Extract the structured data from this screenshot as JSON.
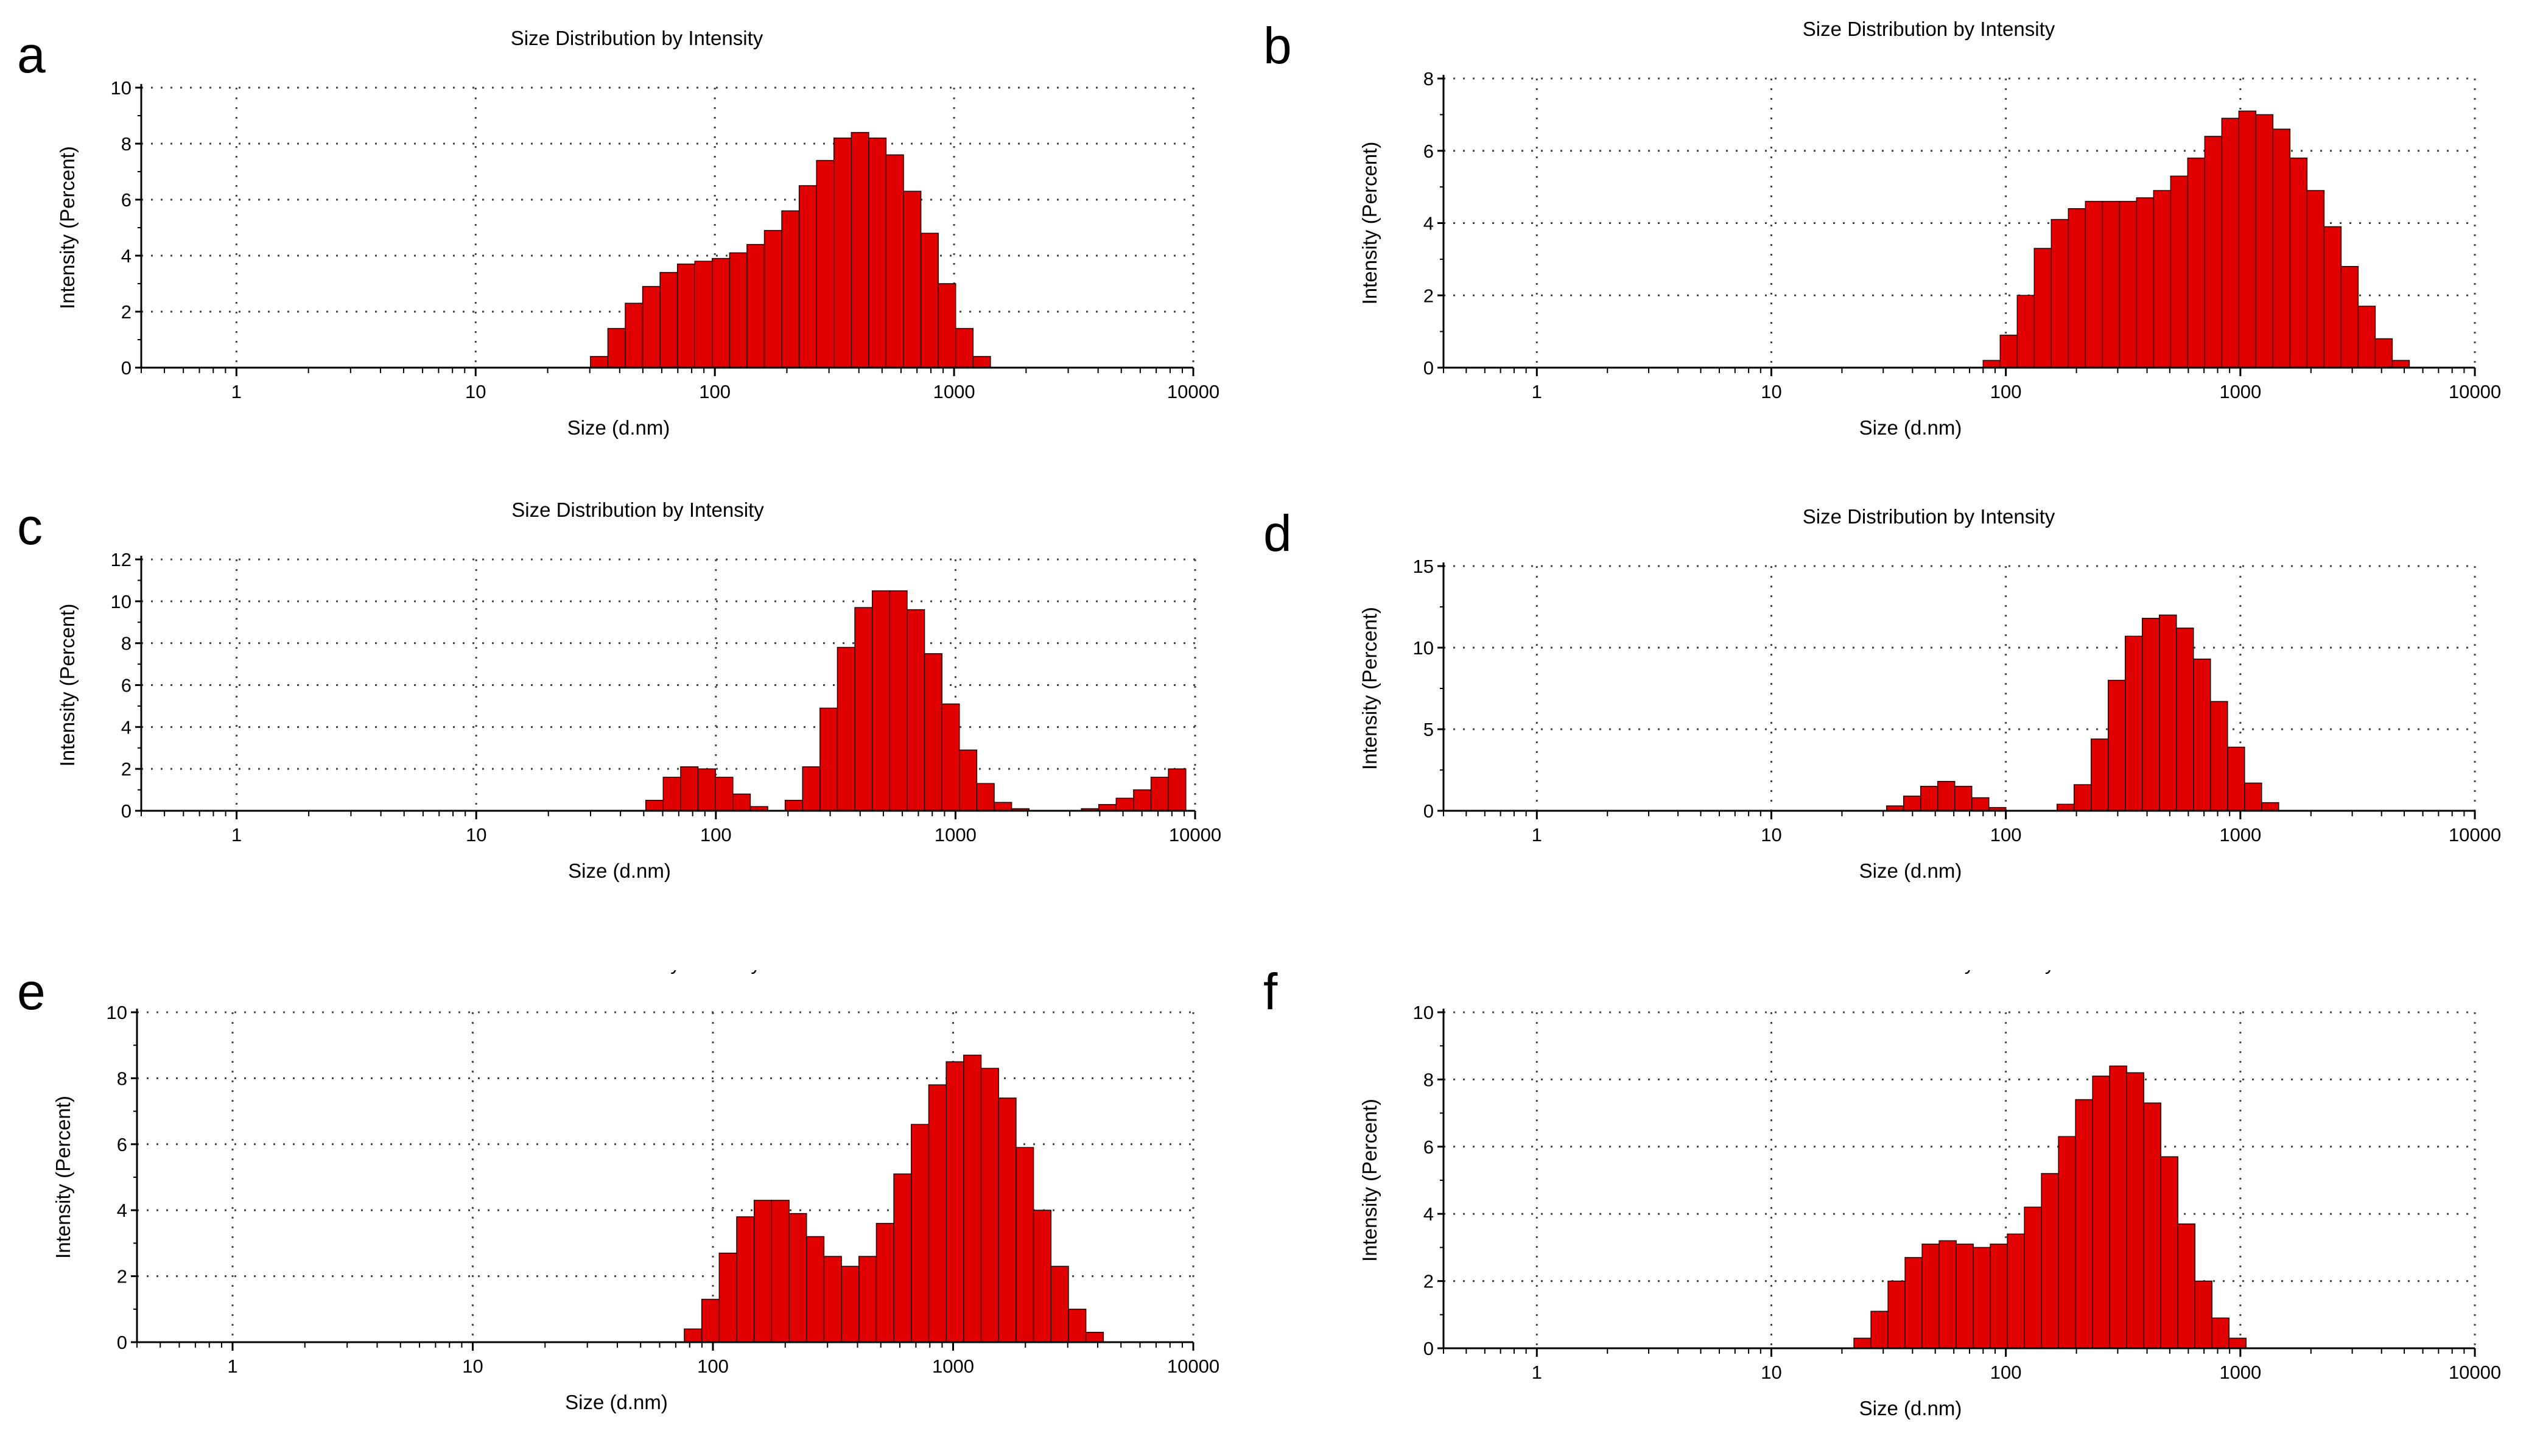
{
  "chart_data": [
    {
      "panel": "a",
      "type": "bar",
      "title": "Size Distribution by Intensity",
      "xlabel": "Size (d.nm)",
      "ylabel": "Intensity (Percent)",
      "xscale": "log",
      "xlim": [
        0.4,
        10000
      ],
      "ylim": [
        0,
        10
      ],
      "yticks": [
        0,
        2,
        4,
        6,
        8,
        10
      ],
      "xtick_labels": [
        "1",
        "10",
        "100",
        "1000",
        "10000"
      ],
      "bin_start": 30.2,
      "values": [
        0.4,
        1.4,
        2.3,
        2.9,
        3.4,
        3.7,
        3.8,
        3.9,
        4.1,
        4.4,
        4.9,
        5.6,
        6.5,
        7.4,
        8.2,
        8.4,
        8.2,
        7.6,
        6.3,
        4.8,
        3.0,
        1.4,
        0.4
      ]
    },
    {
      "panel": "b",
      "type": "bar",
      "title": "Size Distribution by Intensity",
      "xlabel": "Size (d.nm)",
      "ylabel": "Intensity (Percent)",
      "xscale": "log",
      "xlim": [
        0.4,
        10000
      ],
      "ylim": [
        0,
        8
      ],
      "yticks": [
        0,
        2,
        4,
        6,
        8
      ],
      "xtick_labels": [
        "1",
        "10",
        "100",
        "1000",
        "10000"
      ],
      "bin_start": 80,
      "values": [
        0.2,
        0.9,
        2.0,
        3.3,
        4.1,
        4.4,
        4.6,
        4.6,
        4.6,
        4.7,
        4.9,
        5.3,
        5.8,
        6.4,
        6.9,
        7.1,
        7.0,
        6.6,
        5.8,
        4.9,
        3.9,
        2.8,
        1.7,
        0.8,
        0.2
      ]
    },
    {
      "panel": "c",
      "type": "bar",
      "title": "Size Distribution by Intensity",
      "xlabel": "Size (d.nm)",
      "ylabel": "Intensity (Percent)",
      "xscale": "log",
      "xlim": [
        0.4,
        10000
      ],
      "ylim": [
        0,
        12
      ],
      "yticks": [
        0,
        2,
        4,
        6,
        8,
        10,
        12
      ],
      "xtick_labels": [
        "1",
        "10",
        "100",
        "1000",
        "10000"
      ],
      "bin_start": 51,
      "values": [
        0.5,
        1.6,
        2.1,
        2.0,
        1.6,
        0.8,
        0.2,
        0,
        0.5,
        2.1,
        4.9,
        7.8,
        9.7,
        10.5,
        10.5,
        9.6,
        7.5,
        5.1,
        2.9,
        1.3,
        0.4,
        0.1,
        0,
        0,
        0,
        0.1,
        0.3,
        0.6,
        1.0,
        1.6,
        2.0
      ]
    },
    {
      "panel": "d",
      "type": "bar",
      "title": "Size Distribution by Intensity",
      "xlabel": "Size (d.nm)",
      "ylabel": "Intensity (Percent)",
      "xscale": "log",
      "xlim": [
        0.4,
        10000
      ],
      "ylim": [
        0,
        15
      ],
      "yticks": [
        0,
        5,
        10,
        15
      ],
      "xtick_labels": [
        "1",
        "10",
        "100",
        "1000",
        "10000"
      ],
      "bin_start": 31,
      "values": [
        0.3,
        0.9,
        1.5,
        1.8,
        1.5,
        0.8,
        0.2,
        0,
        0,
        0,
        0.4,
        1.6,
        4.4,
        8.0,
        10.7,
        11.8,
        12.0,
        11.2,
        9.3,
        6.7,
        3.9,
        1.7,
        0.5
      ]
    },
    {
      "panel": "e",
      "type": "bar",
      "title": "Size Distribution by Intensity",
      "xlabel": "Size (d.nm)",
      "ylabel": "Intensity (Percent)",
      "xscale": "log",
      "xlim": [
        0.4,
        10000
      ],
      "ylim": [
        0,
        10
      ],
      "yticks": [
        0,
        2,
        4,
        6,
        8,
        10
      ],
      "xtick_labels": [
        "1",
        "10",
        "100",
        "1000",
        "10000"
      ],
      "bin_start": 76,
      "values": [
        0.4,
        1.3,
        2.7,
        3.8,
        4.3,
        4.3,
        3.9,
        3.2,
        2.6,
        2.3,
        2.6,
        3.6,
        5.1,
        6.6,
        7.8,
        8.5,
        8.7,
        8.3,
        7.4,
        5.9,
        4.0,
        2.3,
        1.0,
        0.3
      ]
    },
    {
      "panel": "f",
      "type": "bar",
      "title": "Size Distribution by Intensity",
      "xlabel": "Size (d.nm)",
      "ylabel": "Intensity (Percent)",
      "xscale": "log",
      "xlim": [
        0.4,
        10000
      ],
      "ylim": [
        0,
        10
      ],
      "yticks": [
        0,
        2,
        4,
        6,
        8,
        10
      ],
      "xtick_labels": [
        "1",
        "10",
        "100",
        "1000",
        "10000"
      ],
      "bin_start": 22.5,
      "values": [
        0.3,
        1.1,
        2.0,
        2.7,
        3.1,
        3.2,
        3.1,
        3.0,
        3.1,
        3.4,
        4.2,
        5.2,
        6.3,
        7.4,
        8.1,
        8.4,
        8.2,
        7.3,
        5.7,
        3.7,
        2.0,
        0.9,
        0.3
      ]
    }
  ],
  "panel_letters": [
    "a",
    "b",
    "c",
    "d",
    "e",
    "f"
  ]
}
